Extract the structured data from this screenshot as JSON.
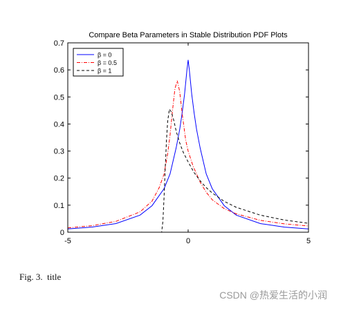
{
  "chart_data": {
    "type": "line",
    "title": "Compare Beta Parameters in Stable Distribution PDF Plots",
    "xlabel": "",
    "ylabel": "",
    "xlim": [
      -5,
      5
    ],
    "ylim": [
      0,
      0.7
    ],
    "xticks": [
      -5,
      0,
      5
    ],
    "yticks": [
      0,
      0.1,
      0.2,
      0.3,
      0.4,
      0.5,
      0.6,
      0.7
    ],
    "grid": false,
    "legend_position": "top-left",
    "series": [
      {
        "name": "β = 0",
        "color": "#0000ff",
        "dash": "solid",
        "points": [
          [
            -5,
            0.012
          ],
          [
            -4,
            0.019
          ],
          [
            -3,
            0.032
          ],
          [
            -2,
            0.063
          ],
          [
            -1.5,
            0.098
          ],
          [
            -1,
            0.161
          ],
          [
            -0.75,
            0.216
          ],
          [
            -0.5,
            0.311
          ],
          [
            -0.35,
            0.38
          ],
          [
            -0.25,
            0.44
          ],
          [
            -0.15,
            0.51
          ],
          [
            -0.05,
            0.6
          ],
          [
            0,
            0.637
          ],
          [
            0.05,
            0.6
          ],
          [
            0.15,
            0.51
          ],
          [
            0.25,
            0.44
          ],
          [
            0.35,
            0.38
          ],
          [
            0.5,
            0.311
          ],
          [
            0.75,
            0.216
          ],
          [
            1,
            0.161
          ],
          [
            1.5,
            0.098
          ],
          [
            2,
            0.063
          ],
          [
            3,
            0.032
          ],
          [
            4,
            0.019
          ],
          [
            5,
            0.012
          ]
        ]
      },
      {
        "name": "β = 0.5",
        "color": "#ff0000",
        "dash": "dashdot",
        "points": [
          [
            -5,
            0.016
          ],
          [
            -4,
            0.024
          ],
          [
            -3,
            0.04
          ],
          [
            -2,
            0.075
          ],
          [
            -1.5,
            0.115
          ],
          [
            -1.2,
            0.165
          ],
          [
            -1,
            0.215
          ],
          [
            -0.85,
            0.29
          ],
          [
            -0.75,
            0.36
          ],
          [
            -0.65,
            0.45
          ],
          [
            -0.55,
            0.53
          ],
          [
            -0.45,
            0.56
          ],
          [
            -0.35,
            0.52
          ],
          [
            -0.25,
            0.44
          ],
          [
            -0.1,
            0.34
          ],
          [
            0,
            0.3
          ],
          [
            0.2,
            0.245
          ],
          [
            0.5,
            0.185
          ],
          [
            0.75,
            0.148
          ],
          [
            1,
            0.12
          ],
          [
            1.5,
            0.087
          ],
          [
            2,
            0.068
          ],
          [
            3,
            0.044
          ],
          [
            4,
            0.031
          ],
          [
            5,
            0.023
          ]
        ]
      },
      {
        "name": "β = 1",
        "color": "#000000",
        "dash": "dashed",
        "points": [
          [
            -5,
            0
          ],
          [
            -2,
            0
          ],
          [
            -1.1,
            0
          ],
          [
            -1.05,
            0.04
          ],
          [
            -1,
            0.13
          ],
          [
            -0.95,
            0.24
          ],
          [
            -0.9,
            0.34
          ],
          [
            -0.85,
            0.41
          ],
          [
            -0.78,
            0.455
          ],
          [
            -0.7,
            0.445
          ],
          [
            -0.6,
            0.415
          ],
          [
            -0.5,
            0.375
          ],
          [
            -0.35,
            0.33
          ],
          [
            -0.2,
            0.295
          ],
          [
            0,
            0.26
          ],
          [
            0.25,
            0.22
          ],
          [
            0.5,
            0.19
          ],
          [
            0.75,
            0.165
          ],
          [
            1,
            0.145
          ],
          [
            1.5,
            0.114
          ],
          [
            2,
            0.092
          ],
          [
            3,
            0.063
          ],
          [
            4,
            0.045
          ],
          [
            5,
            0.033
          ]
        ]
      }
    ]
  },
  "caption": {
    "label": "Fig. 3.",
    "text": "title"
  },
  "watermark": "CSDN @热爱生活的小润"
}
